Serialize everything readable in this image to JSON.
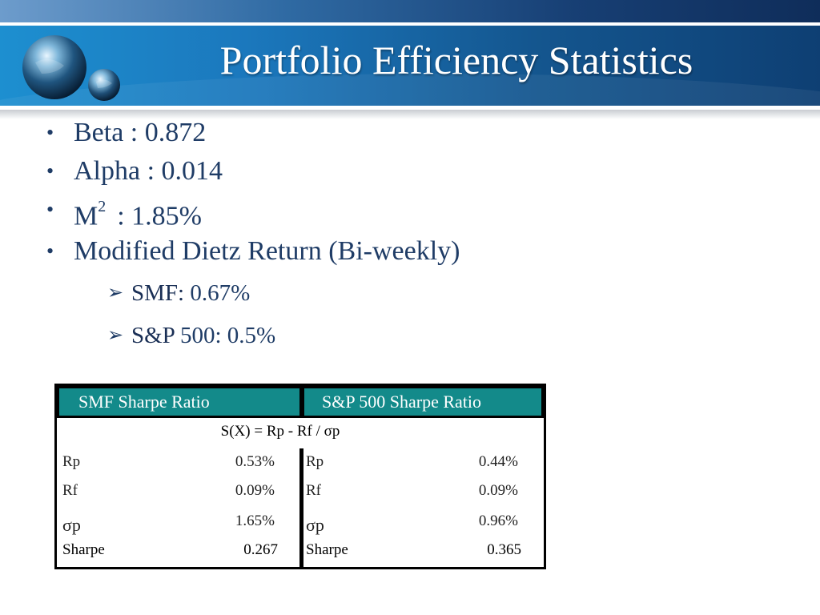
{
  "header": {
    "title": "Portfolio Efficiency Statistics"
  },
  "bullets": {
    "beta": "Beta : 0.872",
    "alpha": "Alpha : 0.014",
    "m2_label": "M",
    "m2_sup": "2",
    "m2_value": ": 1.85%",
    "dietz": "Modified Dietz Return (Bi-weekly)",
    "sub": [
      {
        "label": "SMF:",
        "value": " 0.67%"
      },
      {
        "label": "S&P",
        "value": " 500: 0.5%"
      }
    ]
  },
  "table": {
    "headers": [
      "SMF Sharpe Ratio",
      "S&P 500 Sharpe Ratio"
    ],
    "formula": "S(X) = Rp - Rf / σp",
    "left": {
      "rows": [
        {
          "label": "Rp",
          "value": "0.53%"
        },
        {
          "label": "Rf",
          "value": "0.09%"
        },
        {
          "label": "σp",
          "value": "1.65%"
        },
        {
          "label": "Sharpe",
          "value": "0.267"
        }
      ]
    },
    "right": {
      "rows": [
        {
          "label": "Rp",
          "value": "0.44%"
        },
        {
          "label": "Rf",
          "value": "0.09%"
        },
        {
          "label": "σp",
          "value": "0.96%"
        },
        {
          "label": "Sharpe",
          "value": "0.365"
        }
      ]
    }
  },
  "colors": {
    "banner": "#1b78bd",
    "text": "#1f3c66",
    "table_header": "#138a8a"
  },
  "icons": {
    "logo": "globe-logo-icon",
    "bullet": "bullet-dot-icon",
    "sub_bullet": "arrow-bullet-icon"
  }
}
